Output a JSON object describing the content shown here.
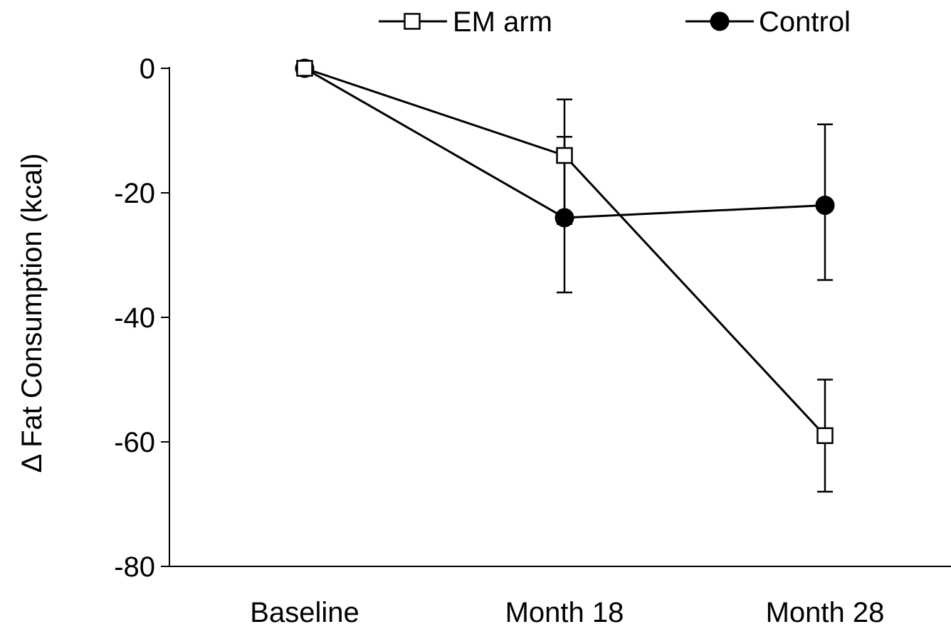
{
  "chart_data": {
    "type": "line",
    "title": "",
    "xlabel": "",
    "ylabel": "Δ Fat Consumption (kcal)",
    "categories": [
      "Baseline",
      "Month 18",
      "Month 28"
    ],
    "ylim": [
      -80,
      0
    ],
    "yticks": [
      0,
      -20,
      -40,
      -60,
      -80
    ],
    "grid": false,
    "legend_position": "top",
    "series": [
      {
        "name": "EM arm",
        "marker": "open-square",
        "values": [
          0,
          -14,
          -59
        ],
        "error_low": [
          0,
          -25,
          -68
        ],
        "error_high": [
          0,
          -5,
          -50
        ]
      },
      {
        "name": "Control",
        "marker": "filled-circle",
        "values": [
          0,
          -24,
          -22
        ],
        "error_low": [
          0,
          -36,
          -34
        ],
        "error_high": [
          0,
          -11,
          -9
        ]
      }
    ],
    "colors": {
      "line": "#000000",
      "marker_fill_open": "#ffffff",
      "marker_fill_solid": "#000000"
    }
  }
}
